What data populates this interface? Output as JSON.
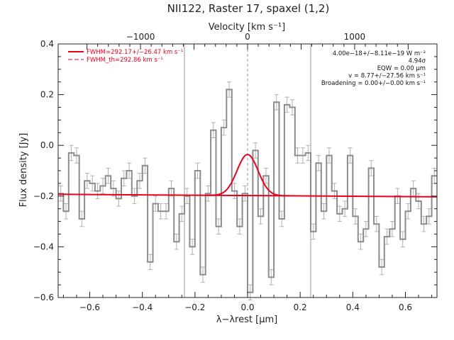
{
  "chart_data": {
    "type": "line",
    "title": "NII122, Raster 17, spaxel (1,2)",
    "xlabel": "λ−λrest [μm]",
    "ylabel": "Flux density [Jy]",
    "top_xlabel": "Velocity [km s⁻¹]",
    "xlim": [
      -0.72,
      0.72
    ],
    "ylim": [
      -0.6,
      0.4
    ],
    "x_ticks": [
      "−0.6",
      "−0.4",
      "−0.2",
      "0.0",
      "0.2",
      "0.4",
      "0.6"
    ],
    "x_tick_values": [
      -0.6,
      -0.4,
      -0.2,
      0.0,
      0.2,
      0.4,
      0.6
    ],
    "y_ticks": [
      "−0.6",
      "−0.4",
      "−0.2",
      "0.0",
      "0.2",
      "0.4"
    ],
    "y_tick_values": [
      -0.6,
      -0.4,
      -0.2,
      0.0,
      0.2,
      0.4
    ],
    "top_ticks": [
      "−1000",
      "0",
      "1000"
    ],
    "top_tick_values": [
      -0.407,
      0.0,
      0.407
    ],
    "vertical_lines": [
      -0.24,
      0.0,
      0.24
    ],
    "step_x": [
      -0.72,
      -0.7,
      -0.68,
      -0.66,
      -0.64,
      -0.62,
      -0.6,
      -0.58,
      -0.56,
      -0.54,
      -0.52,
      -0.5,
      -0.48,
      -0.46,
      -0.44,
      -0.42,
      -0.4,
      -0.38,
      -0.36,
      -0.34,
      -0.32,
      -0.3,
      -0.28,
      -0.26,
      -0.24,
      -0.22,
      -0.2,
      -0.18,
      -0.16,
      -0.14,
      -0.12,
      -0.1,
      -0.08,
      -0.06,
      -0.04,
      -0.02,
      0.0,
      0.02,
      0.04,
      0.06,
      0.08,
      0.1,
      0.12,
      0.14,
      0.16,
      0.18,
      0.2,
      0.22,
      0.24,
      0.26,
      0.28,
      0.3,
      0.32,
      0.34,
      0.36,
      0.38,
      0.4,
      0.42,
      0.44,
      0.46,
      0.48,
      0.5,
      0.52,
      0.54,
      0.56,
      0.58,
      0.6,
      0.62,
      0.64,
      0.66,
      0.68,
      0.7,
      0.72
    ],
    "flux": [
      -0.19,
      -0.26,
      -0.03,
      -0.04,
      -0.29,
      -0.14,
      -0.15,
      -0.18,
      -0.16,
      -0.12,
      -0.17,
      -0.21,
      -0.13,
      -0.1,
      -0.2,
      -0.14,
      -0.08,
      -0.46,
      -0.23,
      -0.26,
      -0.26,
      -0.17,
      -0.38,
      -0.27,
      -0.2,
      -0.4,
      -0.1,
      -0.51,
      -0.19,
      0.06,
      -0.32,
      0.07,
      0.22,
      -0.18,
      -0.32,
      -0.19,
      -0.58,
      -0.02,
      -0.28,
      -0.12,
      -0.52,
      0.17,
      -0.29,
      0.16,
      0.15,
      -0.04,
      -0.04,
      -0.03,
      -0.34,
      -0.07,
      -0.26,
      -0.04,
      -0.18,
      -0.27,
      -0.25,
      -0.04,
      -0.28,
      -0.38,
      -0.33,
      -0.09,
      -0.31,
      -0.48,
      -0.36,
      -0.33,
      -0.2,
      -0.37,
      -0.26,
      -0.17,
      -0.22,
      -0.31,
      -0.28,
      -0.12
    ],
    "flux_err": 0.03,
    "fit_baseline": [
      -0.193,
      -0.203
    ],
    "fit_peak": {
      "center": 0.0,
      "amplitude": 0.162,
      "sigma": 0.04
    },
    "legend": [
      {
        "label": "FWHM=292.17+/−26.47 km s⁻¹",
        "style": "solid",
        "color": "#e8001c"
      },
      {
        "label": "FWHM_th=292.86 km s⁻¹",
        "style": "dashed",
        "color": "#e8001c"
      }
    ],
    "legend_position": "top-left",
    "annotations": [
      "4.00e−18+/−8.11e−19 W m⁻²",
      "4.94σ",
      "EQW = 0.00 μm",
      "v = 8.77+/−27.56 km s⁻¹",
      "Broadening = 0.00+/−0.00 km s⁻¹"
    ],
    "grid": false,
    "colors": {
      "data": "#8c8c8c",
      "fit": "#e8001c",
      "vline": "#9a9a9a",
      "axis": "#222222"
    }
  }
}
